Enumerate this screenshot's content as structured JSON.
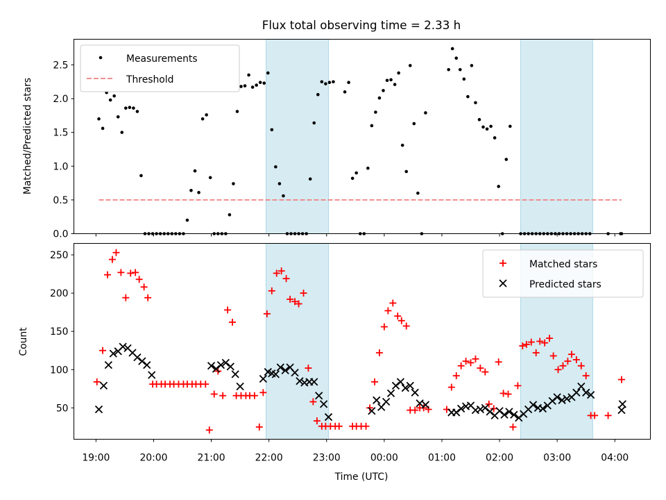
{
  "chart_data": [
    {
      "type": "scatter",
      "title": "Flux total observing time = 2.33 h",
      "xlabel": "",
      "ylabel": "Matched/Predicted stars",
      "ylim": [
        0,
        2.88
      ],
      "yticks": [
        "0.0",
        "0.5",
        "1.0",
        "1.5",
        "2.0",
        "2.5"
      ],
      "ytick_values": [
        0,
        0.5,
        1.0,
        1.5,
        2.0,
        2.5
      ],
      "legend_position": "upper left",
      "shaded_intervals": [
        [
          "21:57",
          "23:02"
        ],
        [
          "02:22",
          "03:37"
        ]
      ],
      "threshold": {
        "name": "Threshold",
        "value": 0.5,
        "x_range": [
          "19:03",
          "04:07"
        ],
        "color": "#f08080"
      },
      "series": [
        {
          "name": "Measurements",
          "color": "#000000",
          "marker": "dot",
          "x": [
            "19:03",
            "19:07",
            "19:11",
            "19:15",
            "19:19",
            "19:23",
            "19:27",
            "19:31",
            "19:35",
            "19:39",
            "19:43",
            "19:47",
            "19:51",
            "19:55",
            "19:59",
            "20:03",
            "20:07",
            "20:11",
            "20:15",
            "20:19",
            "20:23",
            "20:27",
            "20:31",
            "20:35",
            "20:39",
            "20:43",
            "20:47",
            "20:51",
            "20:55",
            "20:59",
            "21:03",
            "21:07",
            "21:11",
            "21:15",
            "21:19",
            "21:23",
            "21:27",
            "21:31",
            "21:35",
            "21:39",
            "21:43",
            "21:47",
            "21:51",
            "21:55",
            "21:59",
            "22:03",
            "22:07",
            "22:11",
            "22:15",
            "22:19",
            "22:23",
            "22:27",
            "22:31",
            "22:35",
            "22:39",
            "22:43",
            "22:47",
            "22:51",
            "22:55",
            "22:59",
            "23:03",
            "23:07",
            "23:19",
            "23:23",
            "23:27",
            "23:31",
            "23:35",
            "23:39",
            "23:43",
            "23:47",
            "23:51",
            "23:55",
            "23:59",
            "00:03",
            "00:07",
            "00:11",
            "00:15",
            "00:19",
            "00:23",
            "00:27",
            "00:31",
            "00:35",
            "00:39",
            "00:43",
            "01:07",
            "01:11",
            "01:15",
            "01:19",
            "01:23",
            "01:27",
            "01:31",
            "01:35",
            "01:39",
            "01:43",
            "01:47",
            "01:51",
            "01:55",
            "01:59",
            "02:03",
            "02:07",
            "02:11",
            "02:22",
            "02:26",
            "02:30",
            "02:34",
            "02:38",
            "02:42",
            "02:46",
            "02:50",
            "02:54",
            "02:58",
            "03:02",
            "03:06",
            "03:10",
            "03:14",
            "03:18",
            "03:22",
            "03:26",
            "03:30",
            "03:34",
            "03:53",
            "04:06",
            "04:07"
          ],
          "y": [
            1.7,
            1.56,
            2.09,
            1.98,
            2.04,
            1.73,
            1.5,
            1.86,
            1.87,
            1.86,
            1.81,
            0.86,
            0.0,
            0.0,
            0.0,
            0.0,
            0.0,
            0.0,
            0.0,
            0.0,
            0.0,
            0.0,
            0.0,
            0.2,
            0.64,
            0.93,
            0.61,
            1.7,
            1.76,
            0.83,
            0.0,
            0.0,
            0.0,
            0.0,
            0.28,
            0.74,
            1.81,
            2.18,
            2.19,
            2.35,
            2.17,
            2.2,
            2.24,
            2.23,
            2.38,
            1.54,
            0.99,
            0.74,
            0.56,
            0.0,
            0.0,
            0.0,
            0.0,
            0.0,
            0.0,
            0.81,
            1.64,
            2.06,
            2.25,
            2.22,
            2.24,
            2.25,
            2.1,
            2.24,
            0.82,
            0.9,
            0.0,
            0.0,
            0.97,
            1.6,
            1.8,
            2.01,
            2.12,
            2.27,
            2.28,
            2.21,
            2.38,
            1.31,
            0.92,
            2.49,
            1.63,
            0.6,
            0.0,
            1.79,
            2.43,
            2.74,
            2.6,
            2.43,
            2.29,
            2.03,
            2.49,
            1.94,
            1.69,
            1.58,
            1.55,
            1.59,
            1.42,
            0.7,
            0.0,
            1.1,
            1.59,
            0.0,
            0.0,
            0.0,
            0.0,
            0.0,
            0.0,
            0.0,
            0.0,
            0.0,
            0.0,
            0.0,
            0.0,
            0.0,
            0.0,
            0.0,
            0.0,
            0.0,
            0.0,
            0.0,
            0.0,
            0.0,
            0.0
          ]
        }
      ]
    },
    {
      "type": "scatter",
      "title": "",
      "xlabel": "Time (UTC)",
      "ylabel": "Count",
      "ylim": [
        9,
        265
      ],
      "yticks": [
        "50",
        "100",
        "150",
        "200",
        "250"
      ],
      "ytick_values": [
        50,
        100,
        150,
        200,
        250
      ],
      "xlim": [
        "18:37",
        "04:37"
      ],
      "xticks": [
        "19:00",
        "20:00",
        "21:00",
        "22:00",
        "23:00",
        "00:00",
        "01:00",
        "02:00",
        "03:00",
        "04:00"
      ],
      "legend_position": "upper right",
      "shaded_intervals": [
        [
          "21:57",
          "23:02"
        ],
        [
          "02:22",
          "03:37"
        ]
      ],
      "series": [
        {
          "name": "Matched stars",
          "color": "#ff0000",
          "marker": "plus",
          "x": [
            "19:01",
            "19:07",
            "19:12",
            "19:17",
            "19:21",
            "19:26",
            "19:31",
            "19:36",
            "19:41",
            "19:45",
            "19:50",
            "19:54",
            "19:59",
            "20:03",
            "20:08",
            "20:12",
            "20:17",
            "20:21",
            "20:26",
            "20:31",
            "20:35",
            "20:40",
            "20:44",
            "20:49",
            "20:54",
            "20:58",
            "21:03",
            "21:07",
            "21:12",
            "21:17",
            "21:22",
            "21:26",
            "21:31",
            "21:36",
            "21:40",
            "21:45",
            "21:50",
            "21:54",
            "21:58",
            "22:03",
            "22:08",
            "22:13",
            "22:18",
            "22:22",
            "22:27",
            "22:31",
            "22:36",
            "22:41",
            "22:46",
            "22:50",
            "22:55",
            "22:59",
            "23:04",
            "23:09",
            "23:13",
            "23:27",
            "23:31",
            "23:36",
            "23:41",
            "23:45",
            "23:50",
            "23:55",
            "00:00",
            "00:04",
            "00:09",
            "00:14",
            "00:18",
            "00:23",
            "00:27",
            "00:32",
            "00:37",
            "00:41",
            "00:46",
            "01:05",
            "01:10",
            "01:15",
            "01:20",
            "01:25",
            "01:30",
            "01:35",
            "01:40",
            "01:45",
            "01:49",
            "01:54",
            "01:59",
            "02:04",
            "02:09",
            "02:14",
            "02:19",
            "02:24",
            "02:28",
            "02:33",
            "02:38",
            "02:42",
            "02:47",
            "02:52",
            "02:56",
            "03:01",
            "03:06",
            "03:11",
            "03:15",
            "03:20",
            "03:25",
            "03:30",
            "03:35",
            "03:39",
            "03:53",
            "04:07"
          ],
          "y": [
            84,
            125,
            224,
            244,
            253,
            227,
            194,
            226,
            227,
            218,
            208,
            194,
            81,
            81,
            81,
            81,
            81,
            81,
            81,
            81,
            81,
            81,
            81,
            81,
            81,
            21,
            68,
            98,
            66,
            178,
            162,
            66,
            66,
            66,
            66,
            66,
            25,
            70,
            173,
            203,
            226,
            229,
            219,
            192,
            189,
            186,
            200,
            102,
            58,
            33,
            26,
            26,
            26,
            26,
            26,
            26,
            26,
            26,
            26,
            50,
            84,
            122,
            156,
            177,
            187,
            170,
            164,
            157,
            47,
            47,
            50,
            50,
            48,
            48,
            77,
            92,
            105,
            111,
            109,
            114,
            102,
            97,
            55,
            49,
            110,
            69,
            68,
            25,
            79,
            131,
            133,
            136,
            122,
            137,
            135,
            141,
            118,
            100,
            105,
            111,
            120,
            113,
            105,
            92,
            40,
            40,
            40,
            87
          ]
        },
        {
          "name": "Predicted stars",
          "color": "#000000",
          "marker": "x",
          "x": [
            "19:03",
            "19:08",
            "19:13",
            "19:18",
            "19:23",
            "19:28",
            "19:33",
            "19:38",
            "19:43",
            "19:48",
            "19:53",
            "19:58",
            "21:00",
            "21:05",
            "21:10",
            "21:15",
            "21:20",
            "21:25",
            "21:30",
            "21:54",
            "21:59",
            "22:03",
            "22:07",
            "22:12",
            "22:17",
            "22:22",
            "22:27",
            "22:32",
            "22:37",
            "22:42",
            "22:47",
            "22:52",
            "22:57",
            "23:02",
            "23:47",
            "23:52",
            "23:57",
            "00:02",
            "00:07",
            "00:12",
            "00:17",
            "00:22",
            "00:27",
            "00:32",
            "00:37",
            "00:43",
            "01:10",
            "01:15",
            "01:20",
            "01:25",
            "01:30",
            "01:35",
            "01:40",
            "01:45",
            "01:50",
            "01:55",
            "02:00",
            "02:05",
            "02:10",
            "02:15",
            "02:20",
            "02:25",
            "02:30",
            "02:35",
            "02:40",
            "02:45",
            "02:50",
            "02:55",
            "03:00",
            "03:05",
            "03:10",
            "03:15",
            "03:20",
            "03:25",
            "03:30",
            "03:35",
            "04:07",
            "04:08"
          ],
          "y": [
            48,
            79,
            106,
            121,
            124,
            130,
            128,
            122,
            116,
            111,
            106,
            93,
            105,
            101,
            106,
            109,
            104,
            94,
            78,
            88,
            97,
            95,
            94,
            103,
            99,
            103,
            96,
            85,
            83,
            84,
            84,
            66,
            55,
            38,
            46,
            60,
            51,
            58,
            69,
            79,
            84,
            76,
            79,
            70,
            56,
            54,
            44,
            44,
            49,
            52,
            53,
            47,
            48,
            50,
            45,
            40,
            46,
            41,
            45,
            41,
            37,
            42,
            48,
            54,
            50,
            49,
            53,
            59,
            64,
            60,
            62,
            64,
            70,
            78,
            70,
            67,
            47,
            55
          ]
        }
      ]
    }
  ]
}
